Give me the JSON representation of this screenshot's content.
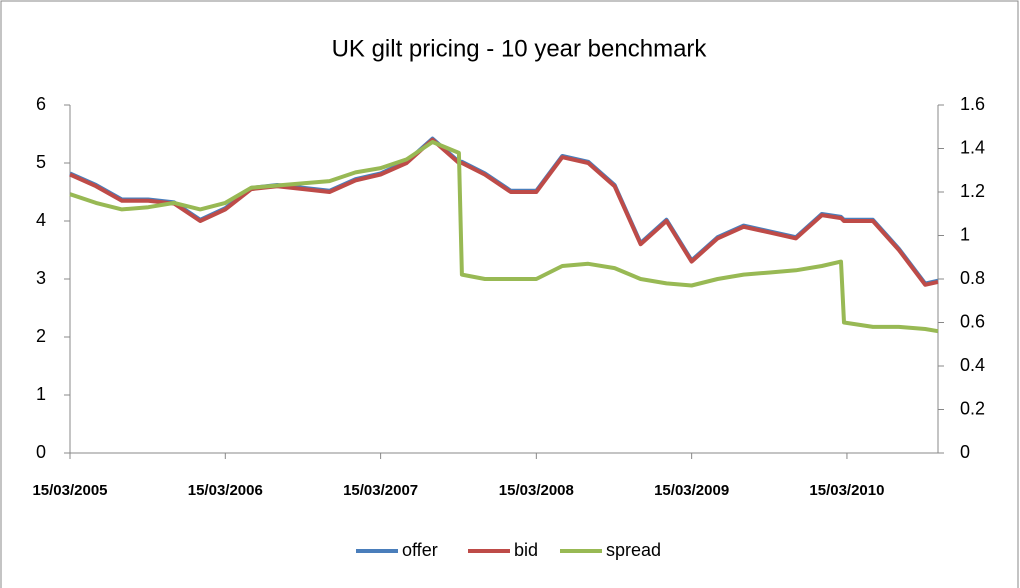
{
  "chart_data": {
    "type": "line",
    "title": "UK gilt pricing - 10 year benchmark",
    "x": [
      "15/03/2005",
      "15/05/2005",
      "15/07/2005",
      "15/09/2005",
      "15/11/2005",
      "15/01/2006",
      "15/03/2006",
      "15/05/2006",
      "15/07/2006",
      "15/09/2006",
      "15/11/2006",
      "15/01/2007",
      "15/03/2007",
      "15/05/2007",
      "15/07/2007",
      "15/09/2007",
      "22/09/2007",
      "15/11/2007",
      "15/01/2008",
      "15/03/2008",
      "15/05/2008",
      "15/07/2008",
      "15/09/2008",
      "15/11/2008",
      "15/01/2009",
      "15/03/2009",
      "15/05/2009",
      "15/07/2009",
      "15/09/2009",
      "15/11/2009",
      "15/01/2010",
      "01/03/2010",
      "08/03/2010",
      "15/05/2010",
      "15/07/2010",
      "15/09/2010",
      "15/10/2010"
    ],
    "series": [
      {
        "name": "offer",
        "color": "#4a7ebb",
        "values": [
          4.82,
          4.62,
          4.37,
          4.37,
          4.32,
          4.02,
          4.22,
          4.57,
          4.62,
          4.57,
          4.52,
          4.72,
          4.82,
          5.02,
          5.42,
          5.02,
          5.02,
          4.82,
          4.52,
          4.52,
          5.12,
          5.02,
          4.62,
          3.62,
          4.02,
          3.32,
          3.72,
          3.92,
          3.82,
          3.72,
          4.12,
          4.07,
          4.02,
          4.02,
          3.52,
          2.92,
          2.97
        ]
      },
      {
        "name": "bid",
        "color": "#be4b48",
        "values": [
          4.8,
          4.6,
          4.35,
          4.35,
          4.3,
          4.0,
          4.2,
          4.55,
          4.6,
          4.55,
          4.5,
          4.7,
          4.8,
          5.0,
          5.4,
          5.0,
          5.0,
          4.8,
          4.5,
          4.5,
          5.1,
          5.0,
          4.6,
          3.6,
          4.0,
          3.3,
          3.7,
          3.9,
          3.8,
          3.7,
          4.1,
          4.05,
          4.0,
          4.0,
          3.5,
          2.9,
          2.95
        ]
      },
      {
        "name": "spread",
        "color": "#98b954",
        "axis": "y2",
        "values": [
          1.19,
          1.15,
          1.12,
          1.13,
          1.15,
          1.12,
          1.15,
          1.22,
          1.23,
          1.24,
          1.25,
          1.29,
          1.31,
          1.35,
          1.43,
          1.38,
          0.82,
          0.8,
          0.8,
          0.8,
          0.86,
          0.87,
          0.85,
          0.8,
          0.78,
          0.77,
          0.8,
          0.82,
          0.83,
          0.84,
          0.86,
          0.88,
          0.6,
          0.58,
          0.58,
          0.57,
          0.56
        ]
      }
    ],
    "xlim": [
      "15/03/2005",
      "15/10/2010"
    ],
    "xticks": [
      "15/03/2005",
      "15/03/2006",
      "15/03/2007",
      "15/03/2008",
      "15/03/2009",
      "15/03/2010"
    ],
    "ylim": [
      0,
      6
    ],
    "yticks": [
      0,
      1,
      2,
      3,
      4,
      5,
      6
    ],
    "y2lim": [
      0,
      1.6
    ],
    "y2ticks": [
      0,
      0.2,
      0.4,
      0.6,
      0.8,
      1,
      1.2,
      1.4,
      1.6
    ],
    "legend": "bottom"
  }
}
